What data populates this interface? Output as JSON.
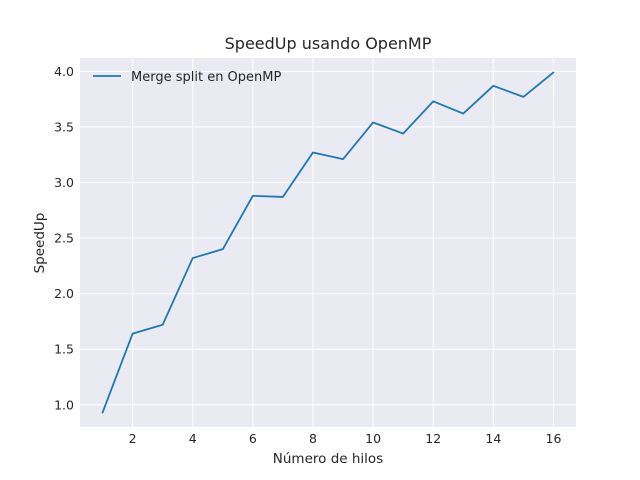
{
  "chart_data": {
    "type": "line",
    "title": "SpeedUp usando OpenMP",
    "xlabel": "Número de hilos",
    "ylabel": "SpeedUp",
    "xlim": [
      0.25,
      16.75
    ],
    "ylim": [
      0.8,
      4.12
    ],
    "xticks": [
      2,
      4,
      6,
      8,
      10,
      12,
      14,
      16
    ],
    "yticks": [
      1.0,
      1.5,
      2.0,
      2.5,
      3.0,
      3.5,
      4.0
    ],
    "grid": true,
    "legend_position": "top-left",
    "series": [
      {
        "name": "Merge split en OpenMP",
        "color": "#1f77b4",
        "x": [
          1,
          2,
          3,
          4,
          5,
          6,
          7,
          8,
          9,
          10,
          11,
          12,
          13,
          14,
          15,
          16
        ],
        "y": [
          0.93,
          1.64,
          1.72,
          2.32,
          2.4,
          2.88,
          2.87,
          3.27,
          3.21,
          3.54,
          3.44,
          3.73,
          3.62,
          3.87,
          3.77,
          3.99
        ]
      }
    ]
  }
}
